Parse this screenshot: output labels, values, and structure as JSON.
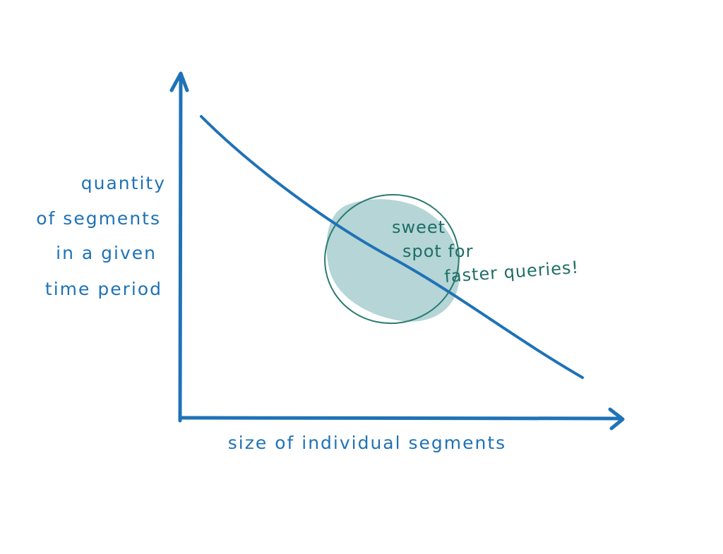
{
  "axes": {
    "y_label": [
      "quantity",
      "of segments",
      "in a given",
      "time period"
    ],
    "x_label": "size of individual segments"
  },
  "annotation": {
    "lines": [
      "sweet",
      "spot for",
      "faster queries!"
    ]
  }
}
